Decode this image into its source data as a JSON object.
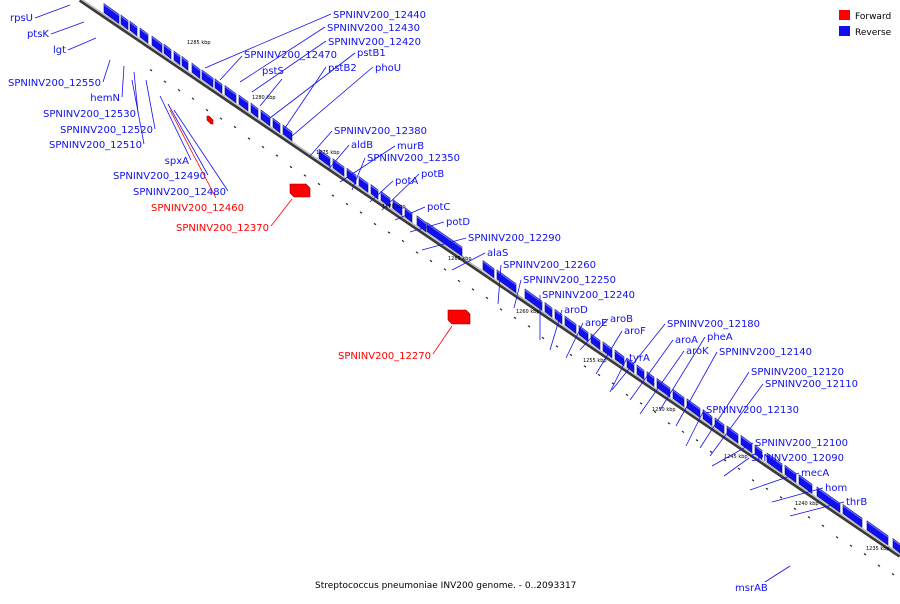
{
  "legend": {
    "forward_label": "Forward",
    "reverse_label": "Reverse",
    "forward_color": "#ff0000",
    "reverse_color": "#1010ee"
  },
  "caption": "Streptococcus pneumoniae INV200 genome. - 0..2093317",
  "scale_unit": "kbp",
  "ticks": [
    "1285 kbp",
    "1280 kbp",
    "1275 kbp",
    "1270 kbp",
    "1265 kbp",
    "1260 kbp",
    "1255 kbp",
    "1250 kbp",
    "1245 kbp",
    "1240 kbp",
    "1235 kbp"
  ],
  "genes_reverse": [
    "SPNINV200_12440",
    "SPNINV200_12430",
    "SPNINV200_12420",
    "SPNINV200_12470",
    "pstS",
    "pstB1",
    "pstB2",
    "phoU",
    "SPNINV200_12380",
    "aldB",
    "murB",
    "SPNINV200_12350",
    "potA",
    "potB",
    "potC",
    "potD",
    "SPNINV200_12290",
    "alaS",
    "SPNINV200_12260",
    "SPNINV200_12250",
    "SPNINV200_12240",
    "aroD",
    "aroB",
    "aroE",
    "aroF",
    "SPNINV200_12180",
    "pheA",
    "aroA",
    "aroK",
    "tyrA",
    "SPNINV200_12140",
    "SPNINV200_12120",
    "SPNINV200_12110",
    "SPNINV200_12130",
    "SPNINV200_12100",
    "SPNINV200_12090",
    "mecA",
    "hom",
    "thrB",
    "msrAB",
    "rpsU",
    "ptsK",
    "lgt",
    "SPNINV200_12550",
    "hemN",
    "SPNINV200_12530",
    "SPNINV200_12520",
    "SPNINV200_12510",
    "spxA",
    "SPNINV200_12490",
    "SPNINV200_12480"
  ],
  "genes_forward": [
    "SPNINV200_12460",
    "SPNINV200_12370",
    "SPNINV200_12270"
  ]
}
